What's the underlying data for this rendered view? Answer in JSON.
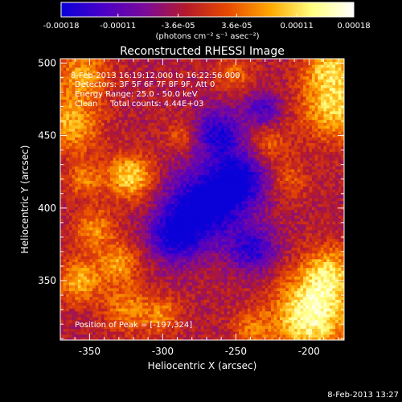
{
  "chart_data": {
    "type": "heatmap",
    "title": "Reconstructed RHESSI Image",
    "xlabel": "Heliocentric X (arcsec)",
    "ylabel": "Heliocentric Y (arcsec)",
    "xlim": [
      -370,
      -176
    ],
    "ylim": [
      309,
      503
    ],
    "x_ticks": [
      -350,
      -300,
      -250,
      -200
    ],
    "y_ticks": [
      350,
      400,
      450,
      500
    ],
    "colorbar": {
      "min": -0.00018,
      "max": 0.00018,
      "tick_labels": [
        "-0.00018",
        "-0.00011",
        "-3.6e-05",
        "3.6e-05",
        "0.00011",
        "0.00018"
      ],
      "units_label": "(photons cm⁻² s⁻¹ asec⁻²)",
      "colors": [
        "#0a00d8",
        "#4a00c8",
        "#7a0a9a",
        "#b51a2a",
        "#e84a00",
        "#ffa800",
        "#ffff80",
        "#ffffff"
      ]
    },
    "annotations": [
      "8-Feb-2013 16:19:12.000 to 16:22:56.000",
      "Detectors: 3F 5F 6F 7F 8F 9F, Att 0",
      "Energy Range: 25.0 - 50.0 keV",
      "Clean     Total counts: 4.44E+03"
    ],
    "peak_label": "Position of Peak = [-197,324]",
    "peak": {
      "x": -197,
      "y": 324
    },
    "hotspots": [
      {
        "x": -199,
        "y": 326,
        "r": 18,
        "v": 0.00018
      },
      {
        "x": -186,
        "y": 355,
        "r": 13,
        "v": 0.00012
      },
      {
        "x": -183,
        "y": 470,
        "r": 16,
        "v": 0.00013
      },
      {
        "x": -186,
        "y": 498,
        "r": 12,
        "v": 0.00011
      },
      {
        "x": -322,
        "y": 422,
        "r": 11,
        "v": 0.00014
      },
      {
        "x": -362,
        "y": 458,
        "r": 14,
        "v": 0.00011
      },
      {
        "x": -355,
        "y": 492,
        "r": 13,
        "v": 0.0001
      },
      {
        "x": -353,
        "y": 420,
        "r": 9,
        "v": 8e-05
      },
      {
        "x": -347,
        "y": 386,
        "r": 10,
        "v": 9e-05
      },
      {
        "x": -357,
        "y": 350,
        "r": 11,
        "v": 0.00011
      },
      {
        "x": -330,
        "y": 362,
        "r": 10,
        "v": 0.0001
      },
      {
        "x": -324,
        "y": 330,
        "r": 11,
        "v": 9e-05
      },
      {
        "x": -300,
        "y": 326,
        "r": 9,
        "v": 8e-05
      },
      {
        "x": -240,
        "y": 317,
        "r": 9,
        "v": 7e-05
      },
      {
        "x": -228,
        "y": 445,
        "r": 10,
        "v": 7e-05
      },
      {
        "x": -214,
        "y": 420,
        "r": 9,
        "v": 6e-05
      },
      {
        "x": -287,
        "y": 450,
        "r": 8,
        "v": 6e-05
      },
      {
        "x": -251,
        "y": 493,
        "r": 9,
        "v": 7e-05
      }
    ],
    "coldspots": [
      {
        "x": -273,
        "y": 400,
        "r": 18,
        "v": -0.00018
      },
      {
        "x": -248,
        "y": 420,
        "r": 14,
        "v": -0.00015
      },
      {
        "x": -262,
        "y": 452,
        "r": 12,
        "v": -0.00013
      },
      {
        "x": -293,
        "y": 380,
        "r": 12,
        "v": -0.00012
      },
      {
        "x": -238,
        "y": 372,
        "r": 11,
        "v": -0.00012
      },
      {
        "x": -231,
        "y": 468,
        "r": 9,
        "v": -0.0001
      }
    ]
  },
  "footer": {
    "timestamp": "8-Feb-2013 13:27"
  }
}
